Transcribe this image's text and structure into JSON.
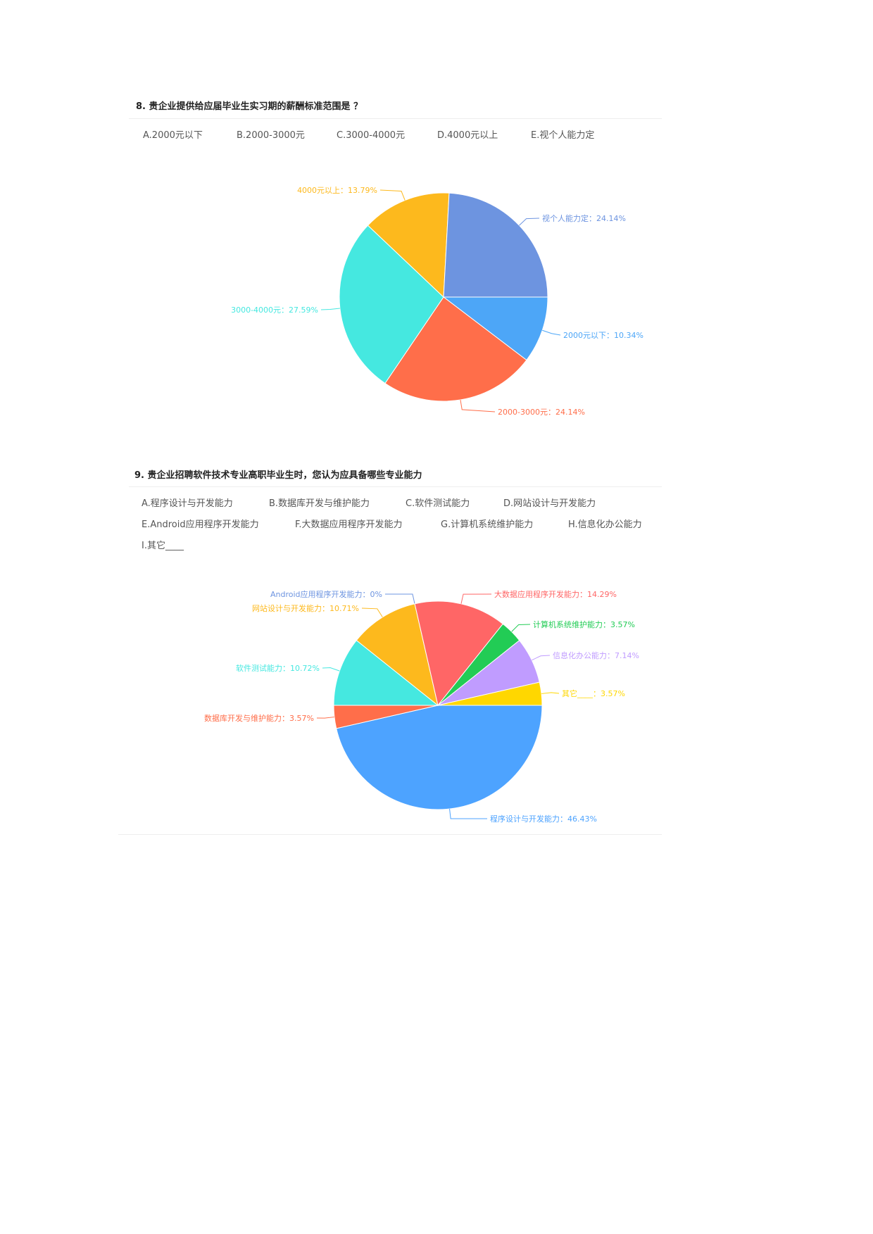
{
  "questions": [
    {
      "title": "8. 贵企业提供给应届毕业生实习期的薪酬标准范围是 ？",
      "options": [
        "A.2000元以下",
        "B.2000-3000元",
        "C.3000-4000元",
        "D.4000元以上",
        "E.视个人能力定"
      ]
    },
    {
      "title": "9. 贵企业招聘软件技术专业高职毕业生时，您认为应具备哪些专业能力",
      "options": [
        "A.程序设计与开发能力",
        "B.数据库开发与维护能力",
        "C.软件测试能力",
        "D.网站设计与开发能力",
        "E.Android应用程序开发能力",
        "F.大数据应用程序开发能力",
        "G.计算机系统维护能力",
        "H.信息化办公能力",
        "I.其它____"
      ]
    }
  ],
  "chart_data": [
    {
      "type": "pie",
      "start": "east, clockwise",
      "slices": [
        {
          "name": "2000元以下",
          "value": 10.34,
          "label": "2000元以下：10.34%",
          "color": "#4da6f7"
        },
        {
          "name": "2000-3000元",
          "value": 24.14,
          "label": "2000-3000元：24.14%",
          "color": "#ff6e4a"
        },
        {
          "name": "3000-4000元",
          "value": 27.59,
          "label": "3000-4000元：27.59%",
          "color": "#45e8e0"
        },
        {
          "name": "4000元以上",
          "value": 13.79,
          "label": "4000元以上：13.79%",
          "color": "#fdb91d"
        },
        {
          "name": "视个人能力定",
          "value": 24.14,
          "label": "视个人能力定：24.14%",
          "color": "#6d94e0"
        }
      ]
    },
    {
      "type": "pie",
      "start": "east, clockwise",
      "slices": [
        {
          "name": "程序设计与开发能力",
          "value": 46.43,
          "label": "程序设计与开发能力：46.43%",
          "color": "#4da3ff"
        },
        {
          "name": "数据库开发与维护能力",
          "value": 3.57,
          "label": "数据库开发与维护能力：3.57%",
          "color": "#ff6e4a"
        },
        {
          "name": "软件测试能力",
          "value": 10.72,
          "label": "软件测试能力：10.72%",
          "color": "#45e8e0"
        },
        {
          "name": "网站设计与开发能力",
          "value": 10.71,
          "label": "网站设计与开发能力：10.71%",
          "color": "#fdb91d"
        },
        {
          "name": "Android应用程序开发能力",
          "value": 0,
          "label": "Android应用程序开发能力：0%",
          "color": "#6d94e0"
        },
        {
          "name": "大数据应用程序开发能力",
          "value": 14.29,
          "label": "大数据应用程序开发能力：14.29%",
          "color": "#ff6666"
        },
        {
          "name": "计算机系统维护能力",
          "value": 3.57,
          "label": "计算机系统维护能力：3.57%",
          "color": "#22cc55"
        },
        {
          "name": "信息化办公能力",
          "value": 7.14,
          "label": "信息化办公能力：7.14%",
          "color": "#c09cff"
        },
        {
          "name": "其它____",
          "value": 3.57,
          "label": "其它____：3.57%",
          "color": "#ffd700"
        }
      ]
    }
  ]
}
